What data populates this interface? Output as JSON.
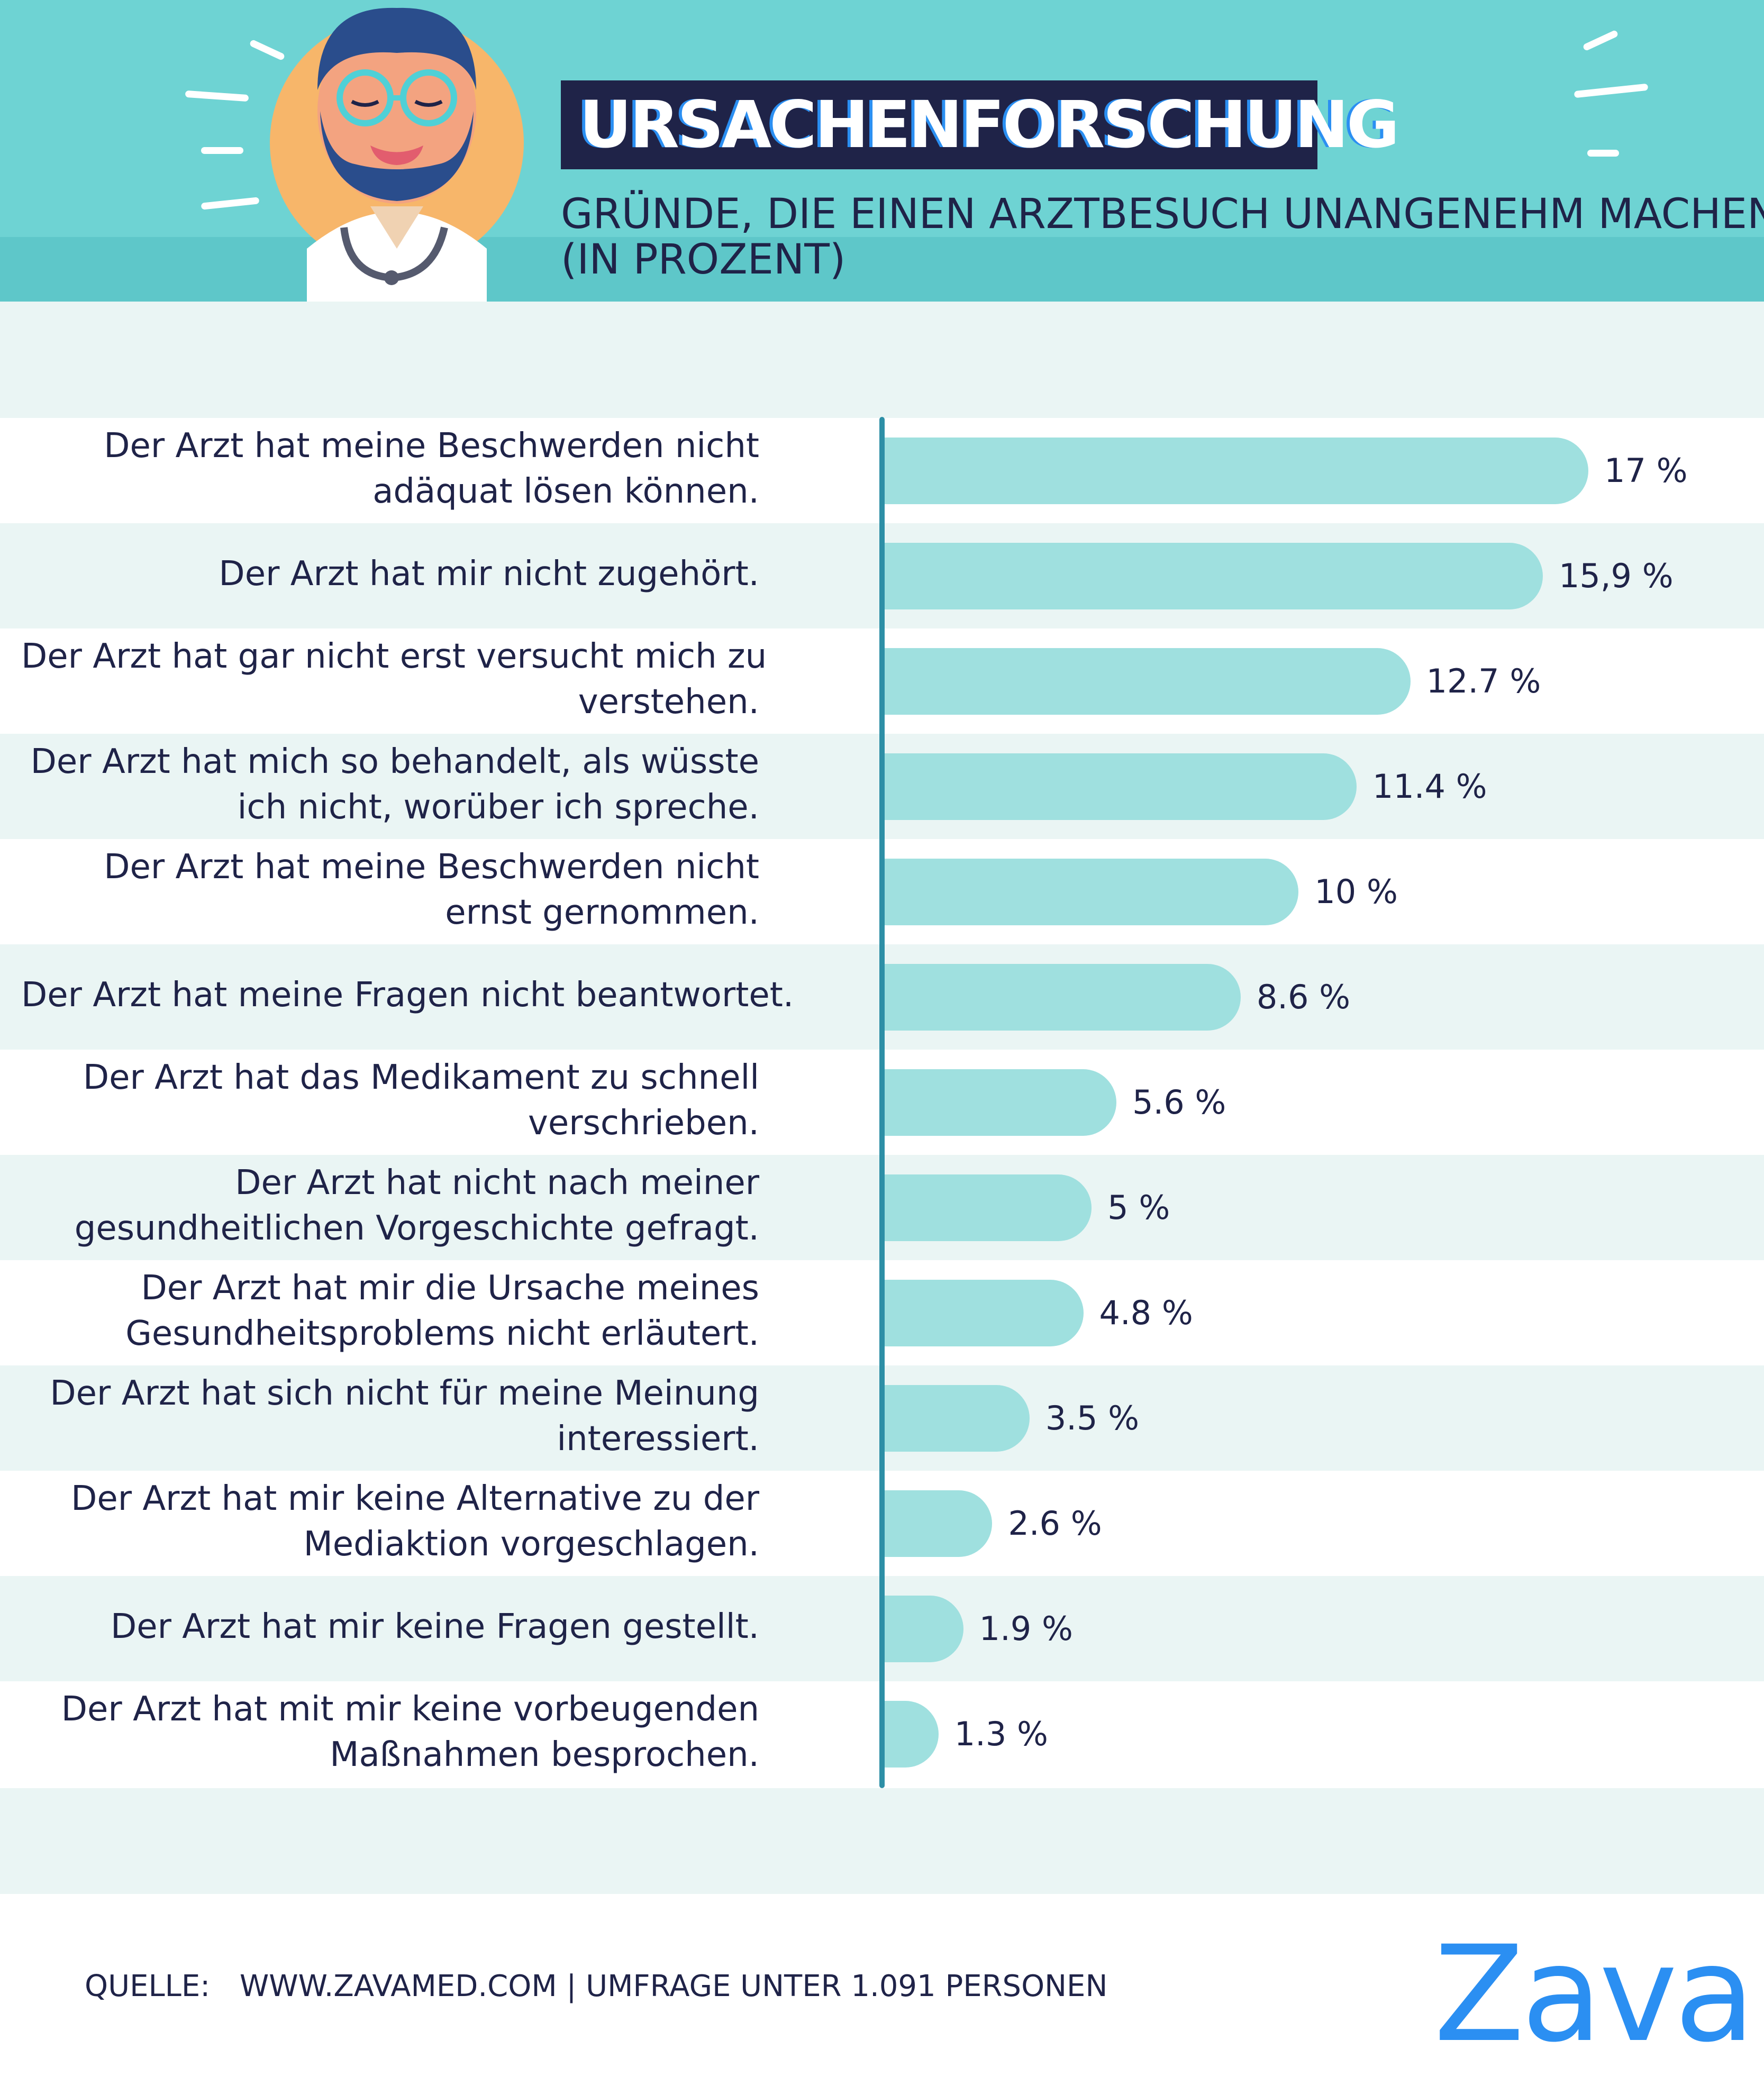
{
  "header": {
    "title": "URSACHENFORSCHUNG",
    "subtitle_lines": [
      "GRÜNDE, DIE EINEN ARZTBESUCH UNANGENEHM MACHEN",
      "(IN PROZENT)"
    ],
    "illustration": "doctor-avatar"
  },
  "chart_data": {
    "type": "bar",
    "orientation": "horizontal",
    "title": "URSACHENFORSCHUNG",
    "subtitle": "GRÜNDE, DIE EINEN ARZTBESUCH UNANGENEHM MACHEN (IN PROZENT)",
    "unit": "%",
    "xlim": [
      0,
      17
    ],
    "rows": [
      {
        "label_lines": [
          "Der Arzt hat meine Beschwerden nicht",
          "adäquat lösen können."
        ],
        "value": 17,
        "value_label": "17 %"
      },
      {
        "label_lines": [
          "Der Arzt hat mir nicht zugehört."
        ],
        "value": 15.9,
        "value_label": "15,9 %"
      },
      {
        "label_lines": [
          "Der Arzt hat gar nicht erst versucht mich zu",
          "verstehen."
        ],
        "value": 12.7,
        "value_label": "12.7  %"
      },
      {
        "label_lines": [
          "Der Arzt hat mich so behandelt, als wüsste",
          "ich nicht, worüber ich spreche."
        ],
        "value": 11.4,
        "value_label": "11.4 %"
      },
      {
        "label_lines": [
          "Der Arzt hat meine Beschwerden nicht",
          "ernst gernommen."
        ],
        "value": 10,
        "value_label": "10 %"
      },
      {
        "label_lines": [
          "Der Arzt hat meine Fragen nicht beantwortet."
        ],
        "value": 8.6,
        "value_label": "8.6 %"
      },
      {
        "label_lines": [
          "Der Arzt hat das Medikament zu schnell",
          "verschrieben."
        ],
        "value": 5.6,
        "value_label": "5.6 %"
      },
      {
        "label_lines": [
          "Der Arzt hat nicht nach meiner",
          "gesundheitlichen Vorgeschichte gefragt."
        ],
        "value": 5,
        "value_label": "5 %"
      },
      {
        "label_lines": [
          "Der Arzt hat mir die Ursache meines",
          "Gesundheitsproblems nicht erläutert."
        ],
        "value": 4.8,
        "value_label": "4.8 %"
      },
      {
        "label_lines": [
          "Der Arzt hat sich nicht für meine Meinung",
          "interessiert."
        ],
        "value": 3.5,
        "value_label": "3.5 %"
      },
      {
        "label_lines": [
          "Der Arzt hat mir keine Alternative zu der",
          "Mediaktion vorgeschlagen."
        ],
        "value": 2.6,
        "value_label": "2.6 %"
      },
      {
        "label_lines": [
          "Der Arzt hat mir keine Fragen gestellt."
        ],
        "value": 1.9,
        "value_label": "1.9 %"
      },
      {
        "label_lines": [
          "Der Arzt hat mit mir keine vorbeugenden",
          "Maßnahmen besprochen."
        ],
        "value": 1.3,
        "value_label": "1.3 %"
      }
    ]
  },
  "footer": {
    "source_label": "QUELLE:",
    "source_text": "WWW.ZAVAMED.COM | UMFRAGE UNTER 1.091 PERSONEN",
    "logo": "Zava"
  },
  "colors": {
    "header_bg": "#6ed3d3",
    "title_bg": "#1f2348",
    "text": "#1f2348",
    "bar": "#9fe0df",
    "row_stripe": "#eaf5f4",
    "axis": "#2d8fa6",
    "brand": "#2b8ff2"
  }
}
